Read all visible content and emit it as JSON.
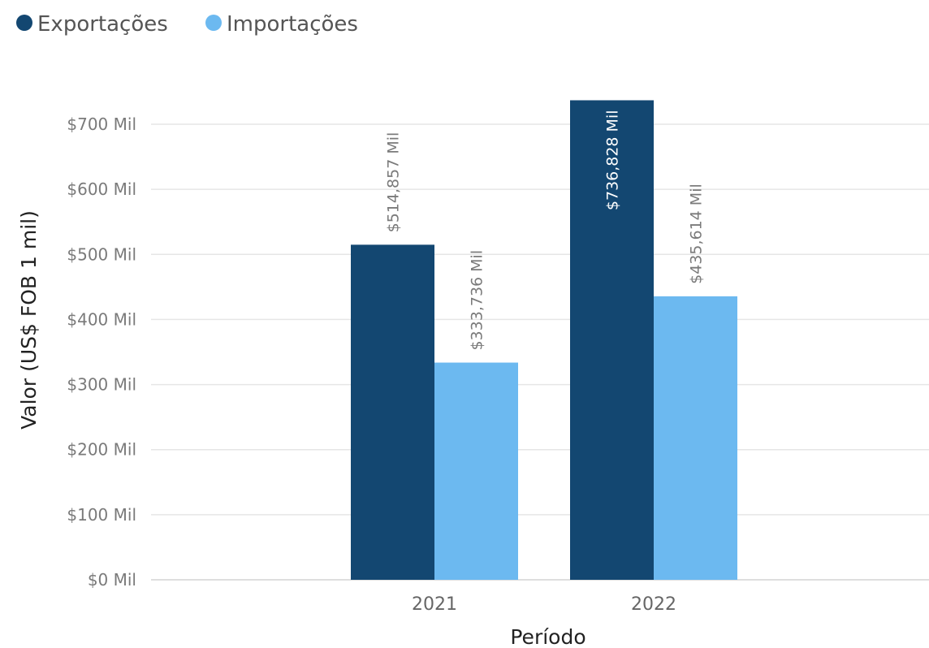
{
  "chart_data": {
    "type": "bar",
    "categories": [
      "2021",
      "2022"
    ],
    "series": [
      {
        "name": "Exportações",
        "values": [
          514857,
          736828
        ],
        "color": "#134771",
        "labels": [
          "$514,857 Mil",
          "$736,828 Mil"
        ]
      },
      {
        "name": "Importações",
        "values": [
          333736,
          435614
        ],
        "color": "#6cb9f0",
        "labels": [
          "$333,736 Mil",
          "$435,614 Mil"
        ]
      }
    ],
    "xlabel": "Período",
    "ylabel": "Valor (US$ FOB 1 mil)",
    "ylim": [
      0,
      700000
    ],
    "yticks": [
      {
        "value": 0,
        "label": "$0 Mil"
      },
      {
        "value": 100000,
        "label": "$100 Mil"
      },
      {
        "value": 200000,
        "label": "$200 Mil"
      },
      {
        "value": 300000,
        "label": "$300 Mil"
      },
      {
        "value": 400000,
        "label": "$400 Mil"
      },
      {
        "value": 500000,
        "label": "$500 Mil"
      },
      {
        "value": 600000,
        "label": "$600 Mil"
      },
      {
        "value": 700000,
        "label": "$700 Mil"
      }
    ],
    "grid": true,
    "legend_position": "top-left"
  }
}
